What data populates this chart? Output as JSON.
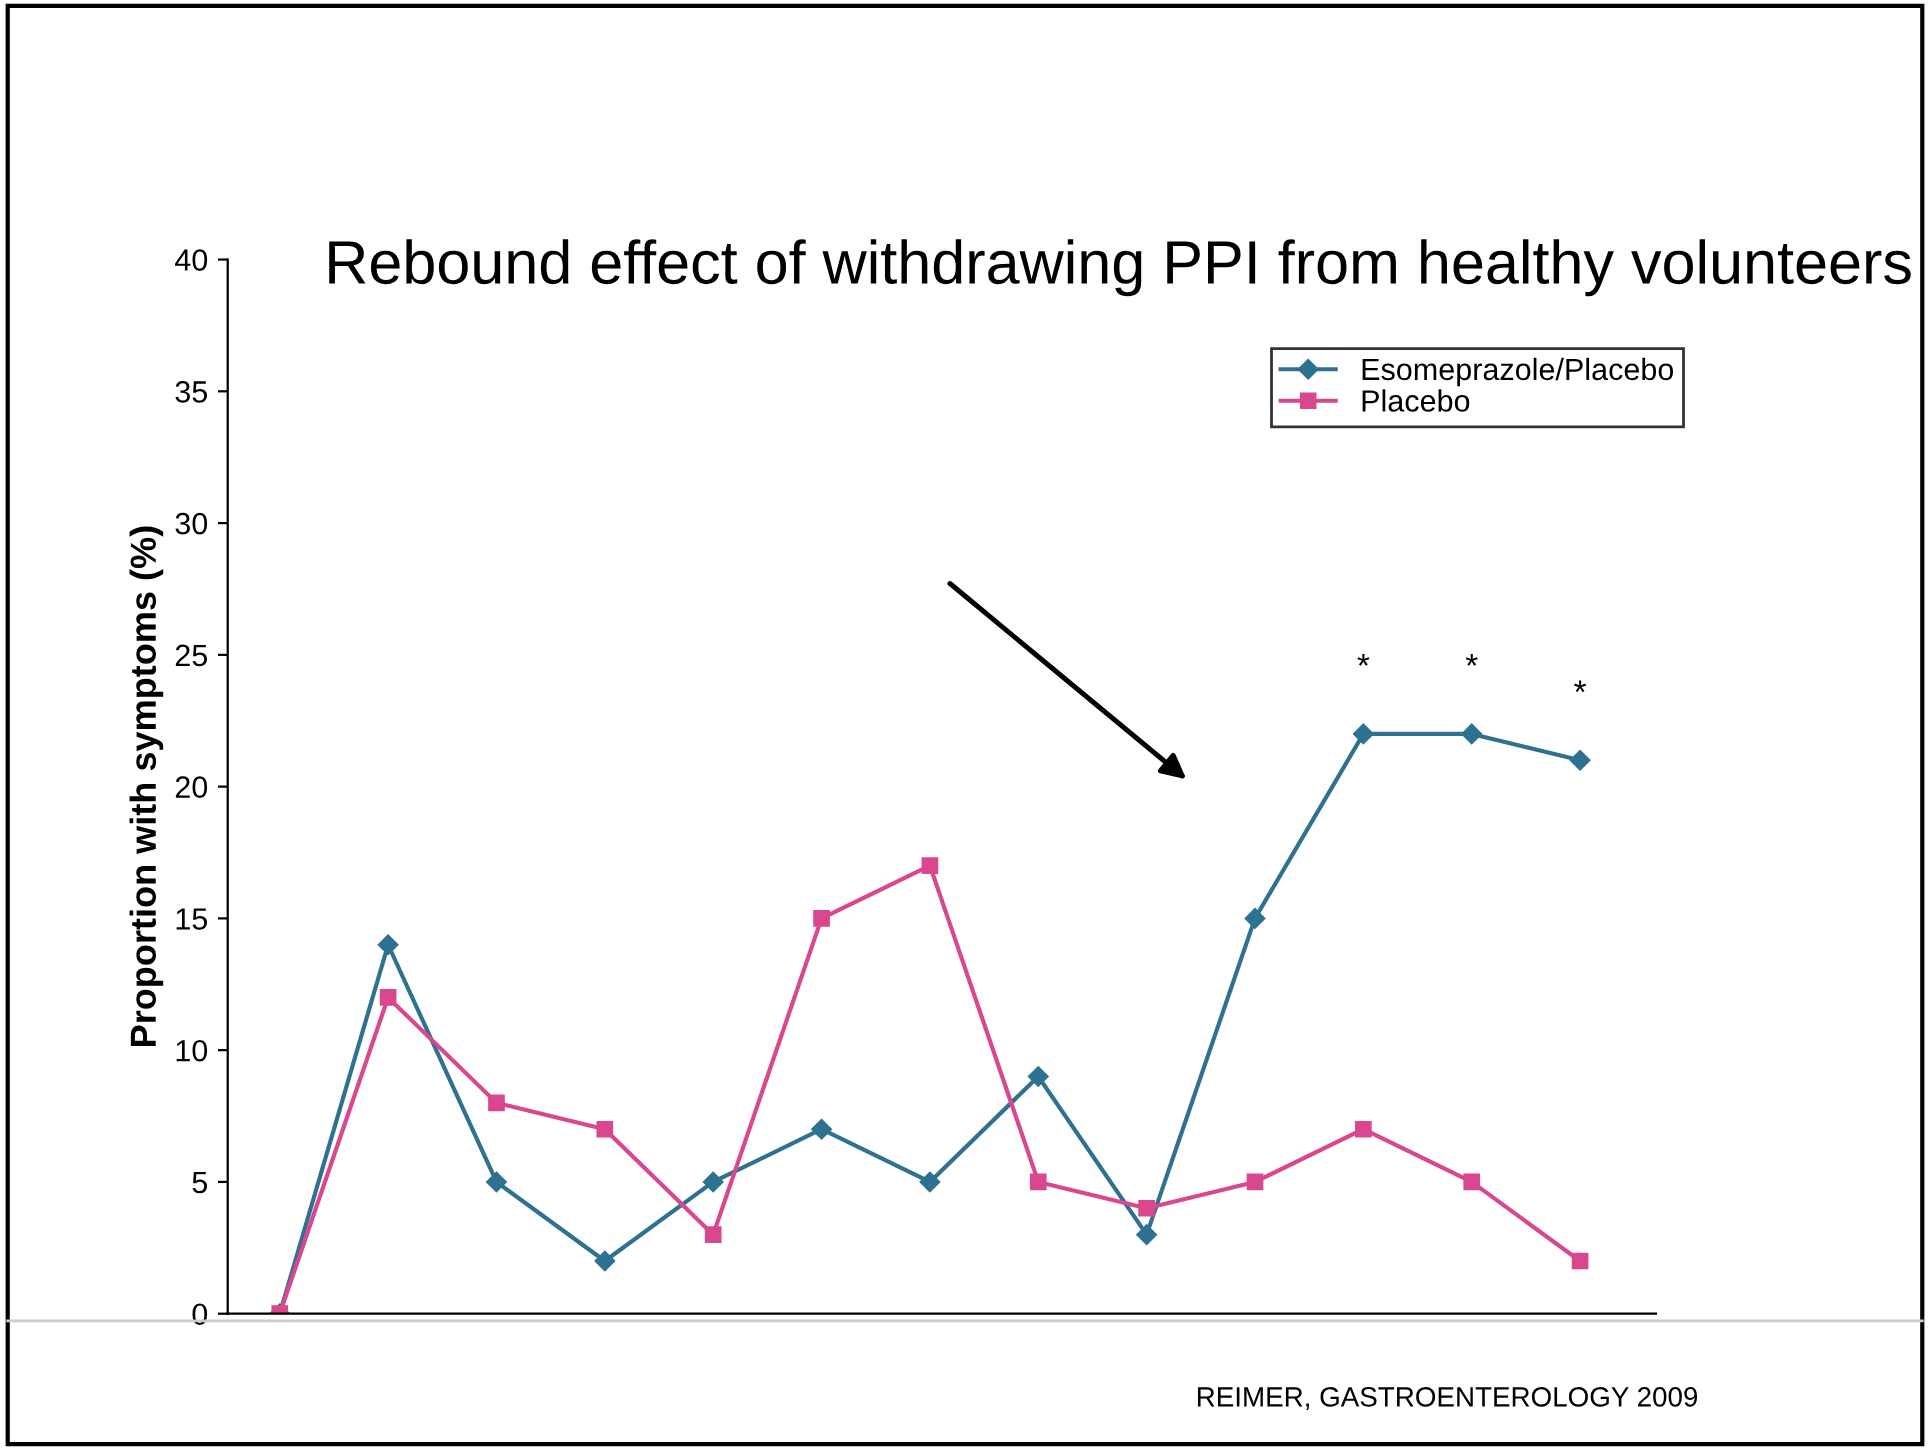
{
  "chart_data": {
    "type": "line",
    "ylabel": "Proportion with symptoms (%)",
    "categories": [
      null,
      null,
      null,
      null,
      null,
      null,
      null,
      null,
      null,
      null,
      null,
      null,
      null
    ],
    "series": [
      {
        "name": "Esomeprazole/Placebo",
        "color": "#2f7191",
        "marker": "diamond",
        "values": [
          0,
          14,
          5,
          2,
          5,
          7,
          5,
          9,
          3,
          15,
          22,
          22,
          21
        ],
        "value_labels": [
          null,
          null,
          null,
          null,
          null,
          null,
          null,
          null,
          null,
          null,
          "*",
          "*",
          "*"
        ]
      },
      {
        "name": "Placebo",
        "color": "#d9478e",
        "marker": "square",
        "values": [
          0,
          12,
          8,
          7,
          3,
          15,
          17,
          5,
          4,
          5,
          7,
          5,
          2
        ]
      }
    ],
    "ylim": [
      0,
      40
    ],
    "yticks": [
      0,
      5,
      10,
      15,
      20,
      25,
      30,
      35,
      40
    ],
    "legend": "top right",
    "grid": false,
    "line_style": "solid",
    "annotations": [
      "Rebound effect of withdrawing PPI from healthy volunteers",
      "REIMER, GASTROENTEROLOGY 2009"
    ]
  }
}
